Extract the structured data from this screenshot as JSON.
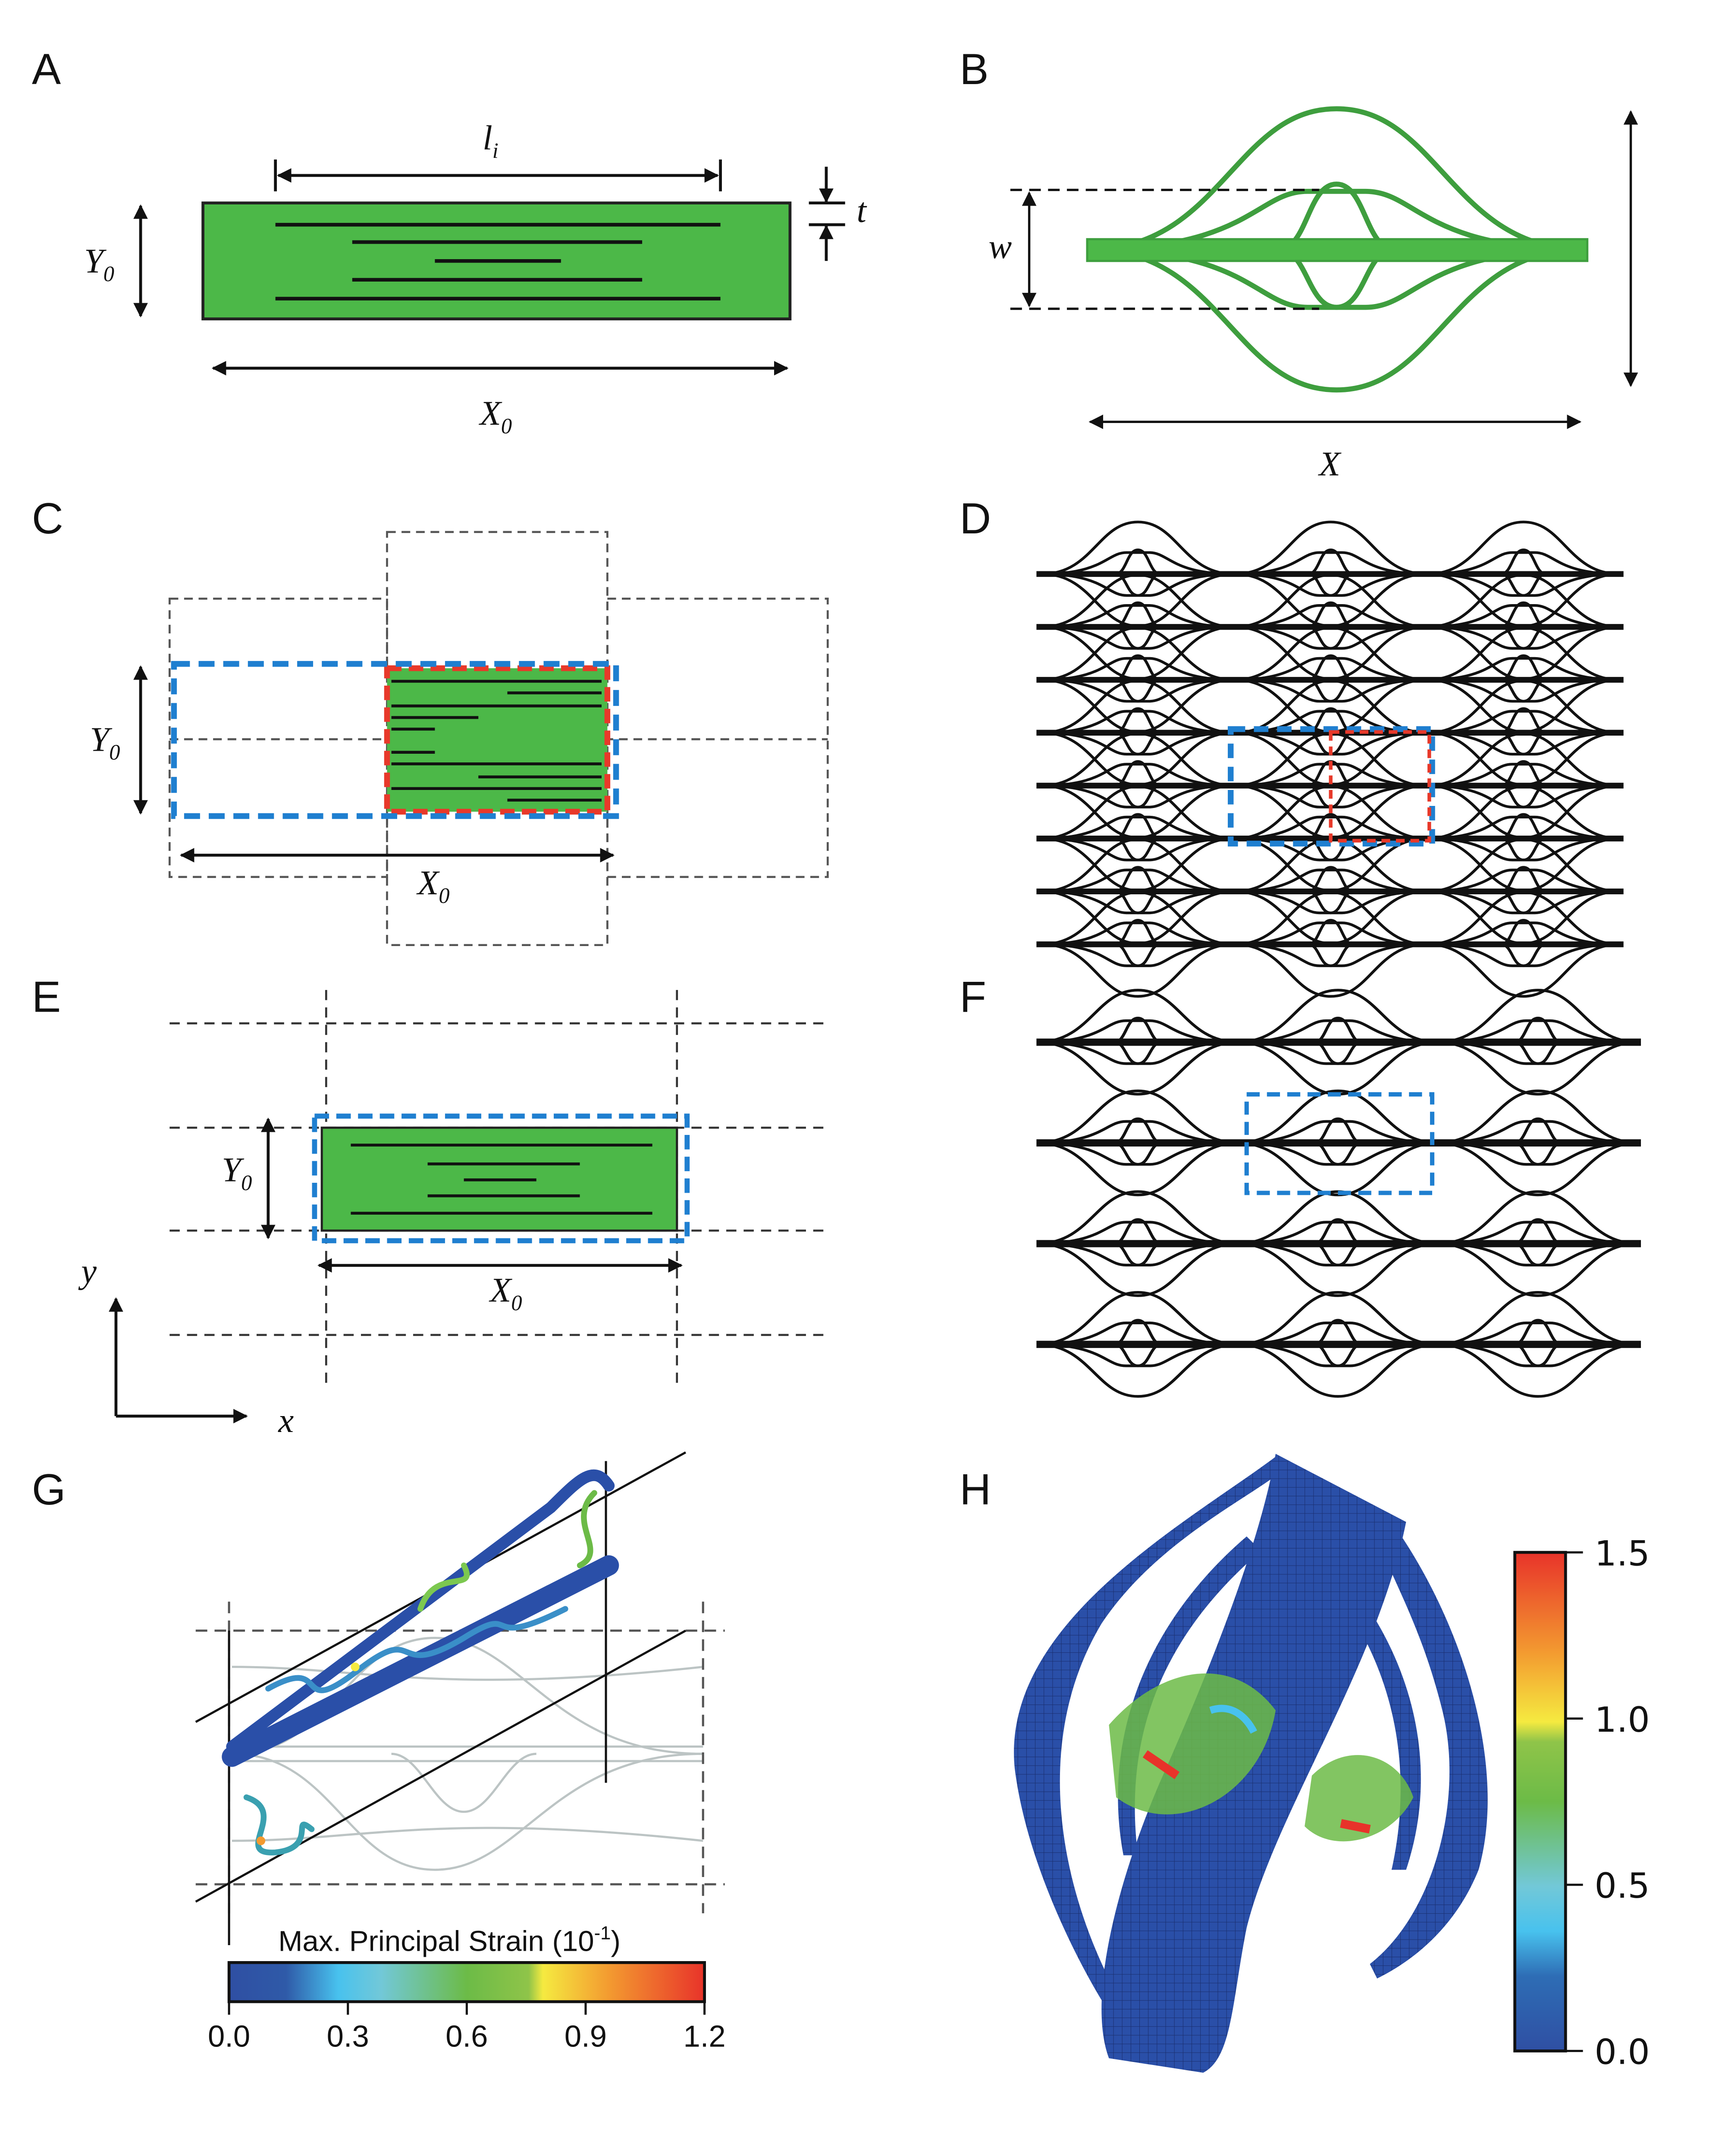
{
  "panels": {
    "A": {
      "label": "A",
      "length_symbol": "l",
      "length_sub": "i",
      "thickness_symbol": "t",
      "height_symbol": "Y",
      "height_sub": "0",
      "width_symbol": "X",
      "width_sub": "0"
    },
    "B": {
      "label": "B",
      "amplitude_symbol": "w",
      "width_symbol": "X"
    },
    "C": {
      "label": "C",
      "height_symbol": "Y",
      "height_sub": "0",
      "width_symbol": "X",
      "width_sub": "0"
    },
    "D": {
      "label": "D"
    },
    "E": {
      "label": "E",
      "height_symbol": "Y",
      "height_sub": "0",
      "width_symbol": "X",
      "width_sub": "0",
      "axis_x": "x",
      "axis_y": "y"
    },
    "F": {
      "label": "F"
    },
    "G": {
      "label": "G",
      "colorbar_title": "Max. Principal Strain (10",
      "colorbar_exp": "-1",
      "colorbar_close": ")",
      "colorbar_ticks": [
        "0.0",
        "0.3",
        "0.6",
        "0.9",
        "1.2"
      ]
    },
    "H": {
      "label": "H",
      "colorbar_ticks": [
        "1.5",
        "1.0",
        "0.5",
        "0.0"
      ]
    }
  },
  "colors": {
    "sheet_green": "#4cb848",
    "unit_cell_blue": "#1f7fd0",
    "unit_cell_red": "#e8392a",
    "mesh_blue": "#2a4fa8"
  }
}
